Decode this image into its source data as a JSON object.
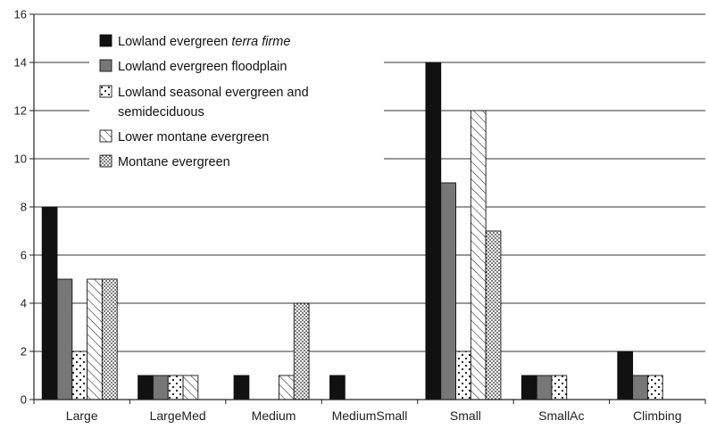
{
  "chart_data": {
    "type": "bar",
    "categories": [
      "Large",
      "LargeMed",
      "Medium",
      "MediumSmall",
      "Small",
      "SmallAc",
      "Climbing"
    ],
    "series": [
      {
        "name": "Lowland evergreen terra firme",
        "values": [
          8,
          1,
          1,
          1,
          14,
          1,
          2
        ],
        "pattern": "solid-black"
      },
      {
        "name": "Lowland evergreen floodplain",
        "values": [
          5,
          1,
          0,
          0,
          9,
          1,
          1
        ],
        "pattern": "solid-gray"
      },
      {
        "name": "Lowland seasonal evergreen and semideciduous",
        "values": [
          2,
          1,
          0,
          0,
          2,
          1,
          1
        ],
        "pattern": "sparse-dots"
      },
      {
        "name": "Lower montane evergreen",
        "values": [
          5,
          1,
          1,
          0,
          12,
          0,
          0
        ],
        "pattern": "diagonal-hatch"
      },
      {
        "name": "Montane evergreen",
        "values": [
          5,
          0,
          4,
          0,
          7,
          0,
          0
        ],
        "pattern": "dense-dots"
      }
    ],
    "legend": {
      "placement": "top-left",
      "lines": [
        {
          "text": "Lowland evergreen ",
          "italic": "terra firme"
        },
        {
          "text": "Lowland evergreen floodplain"
        },
        {
          "text": "Lowland seasonal evergreen and",
          "text2": "semideciduous"
        },
        {
          "text": "Lower montane evergreen"
        },
        {
          "text": "Montane evergreen"
        }
      ]
    },
    "ylim": [
      0,
      16
    ],
    "yticks": [
      0,
      2,
      4,
      6,
      8,
      10,
      12,
      14,
      16
    ],
    "grid": true,
    "colors": {
      "black": "#111111",
      "gray": "#777777",
      "grid": "#333333",
      "axis": "#222222"
    }
  }
}
